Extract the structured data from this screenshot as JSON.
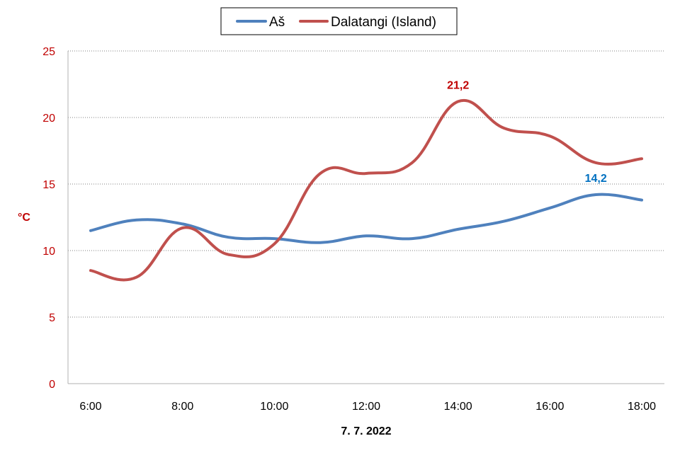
{
  "chart_data": {
    "type": "line",
    "x": [
      "6:00",
      "7:00",
      "8:00",
      "9:00",
      "10:00",
      "11:00",
      "12:00",
      "13:00",
      "14:00",
      "15:00",
      "16:00",
      "17:00",
      "18:00"
    ],
    "x_tick_labels": [
      "6:00",
      "8:00",
      "10:00",
      "12:00",
      "14:00",
      "16:00",
      "18:00"
    ],
    "xlabel": "7. 7. 2022",
    "ylabel": "°C",
    "ylim": [
      0,
      25
    ],
    "y_ticks": [
      0,
      5,
      10,
      15,
      20,
      25
    ],
    "grid": true,
    "legend_position": "top-center",
    "series": [
      {
        "name": "Aš",
        "color": "#4f81bd",
        "values": [
          11.5,
          12.3,
          12.0,
          11.0,
          10.9,
          10.6,
          11.1,
          10.9,
          11.6,
          12.2,
          13.2,
          14.2,
          13.8
        ]
      },
      {
        "name": "Dalatangi (Island)",
        "color": "#c0504d",
        "values": [
          8.5,
          8.0,
          11.7,
          9.7,
          10.5,
          15.8,
          15.8,
          16.6,
          21.2,
          19.2,
          18.6,
          16.6,
          16.9
        ]
      }
    ],
    "annotations": [
      {
        "series": "Dalatangi (Island)",
        "x": "14:00",
        "text": "21,2",
        "color": "#c00000"
      },
      {
        "series": "Aš",
        "x": "17:00",
        "text": "14,2",
        "color": "#0070c0"
      }
    ]
  }
}
